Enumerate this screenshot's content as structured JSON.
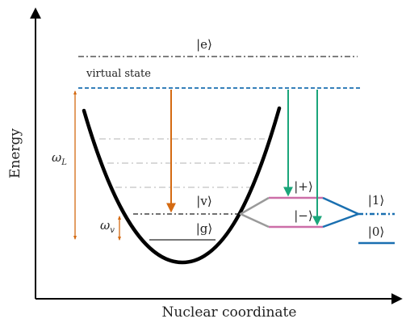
{
  "labels": {
    "excited_state": "|e⟩",
    "virtual_state": "virtual state",
    "vib_state": "|v⟩",
    "ground_state": "|g⟩",
    "plus_state": "|+⟩",
    "minus_state": "|−⟩",
    "qubit_one": "|1⟩",
    "qubit_zero": "|0⟩",
    "omega_L": "ω",
    "omega_L_sub": "L",
    "omega_v": "ω",
    "omega_v_sub": "v",
    "y_axis": "Energy",
    "x_axis": "Nuclear coordinate"
  },
  "colors": {
    "axis": "#000000",
    "potential": "#000000",
    "excited_line": "#555555",
    "virtual_line": "#1a6fb0",
    "faint_levels": "#d9d9d9",
    "vib_line": "#444444",
    "ground_line": "#777777",
    "laser_arrow": "#d46a12",
    "green_arrow": "#1aa57a",
    "pink": "#cc6ea8",
    "gray_coupling": "#9a9a9a",
    "blue_coupling": "#1a6fb0"
  }
}
